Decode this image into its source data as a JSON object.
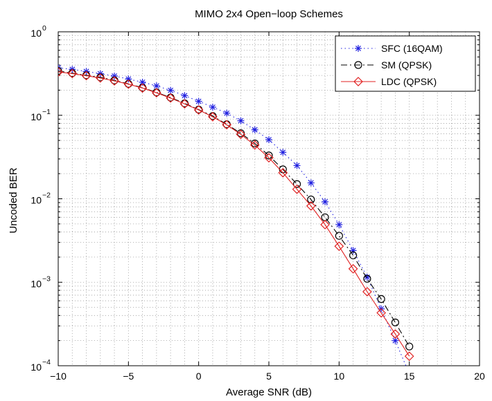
{
  "chart_data": {
    "type": "line",
    "title": "MIMO 2x4 Open−loop Schemes",
    "xlabel": "Average SNR (dB)",
    "ylabel": "Uncoded BER",
    "xlim": [
      -10,
      20
    ],
    "ylim": [
      0.0001,
      1
    ],
    "yscale": "log",
    "grid": true,
    "legend_position": "top-right",
    "x_ticks": [
      "−10",
      "−5",
      "0",
      "5",
      "10",
      "15",
      "20"
    ],
    "x_tick_values": [
      -10,
      -5,
      0,
      5,
      10,
      15,
      20
    ],
    "y_ticks": [
      {
        "base": "10",
        "exp": "0"
      },
      {
        "base": "10",
        "exp": "−1"
      },
      {
        "base": "10",
        "exp": "−2"
      },
      {
        "base": "10",
        "exp": "−3"
      },
      {
        "base": "10",
        "exp": "−4"
      }
    ],
    "y_tick_values": [
      1,
      0.1,
      0.01,
      0.001,
      0.0001
    ],
    "series": [
      {
        "name": "SFC (16QAM)",
        "color": "#1f1fe0",
        "marker": "asterisk",
        "line": "dotted",
        "x": [
          -10,
          -9,
          -8,
          -7,
          -6,
          -5,
          -4,
          -3,
          -2,
          -1,
          0,
          1,
          2,
          3,
          4,
          5,
          6,
          7,
          8,
          9,
          10,
          11,
          12,
          13,
          14,
          15
        ],
        "y": [
          0.37,
          0.355,
          0.335,
          0.315,
          0.295,
          0.272,
          0.249,
          0.225,
          0.199,
          0.172,
          0.147,
          0.125,
          0.106,
          0.086,
          0.067,
          0.051,
          0.036,
          0.025,
          0.0155,
          0.0092,
          0.0049,
          0.0024,
          0.00115,
          0.00048,
          0.0002,
          8e-05
        ]
      },
      {
        "name": "SM (QPSK)",
        "color": "#000000",
        "marker": "circle",
        "line": "dashdot",
        "x": [
          -10,
          -9,
          -8,
          -7,
          -6,
          -5,
          -4,
          -3,
          -2,
          -1,
          0,
          1,
          2,
          3,
          4,
          5,
          6,
          7,
          8,
          9,
          10,
          11,
          12,
          13,
          14,
          15
        ],
        "y": [
          0.34,
          0.32,
          0.302,
          0.285,
          0.262,
          0.238,
          0.214,
          0.188,
          0.163,
          0.139,
          0.117,
          0.098,
          0.078,
          0.061,
          0.046,
          0.033,
          0.0225,
          0.015,
          0.0098,
          0.006,
          0.0036,
          0.0021,
          0.0011,
          0.00063,
          0.00033,
          0.00017
        ]
      },
      {
        "name": "LDC (QPSK)",
        "color": "#e02020",
        "marker": "diamond",
        "line": "solid",
        "x": [
          -10,
          -9,
          -8,
          -7,
          -6,
          -5,
          -4,
          -3,
          -2,
          -1,
          0,
          1,
          2,
          3,
          4,
          5,
          6,
          7,
          8,
          9,
          10,
          11,
          12,
          13,
          14,
          15
        ],
        "y": [
          0.33,
          0.316,
          0.298,
          0.28,
          0.258,
          0.236,
          0.212,
          0.186,
          0.161,
          0.137,
          0.116,
          0.096,
          0.077,
          0.059,
          0.044,
          0.031,
          0.0205,
          0.013,
          0.0082,
          0.0049,
          0.0027,
          0.00145,
          0.00077,
          0.00043,
          0.00024,
          0.00013
        ]
      }
    ]
  }
}
